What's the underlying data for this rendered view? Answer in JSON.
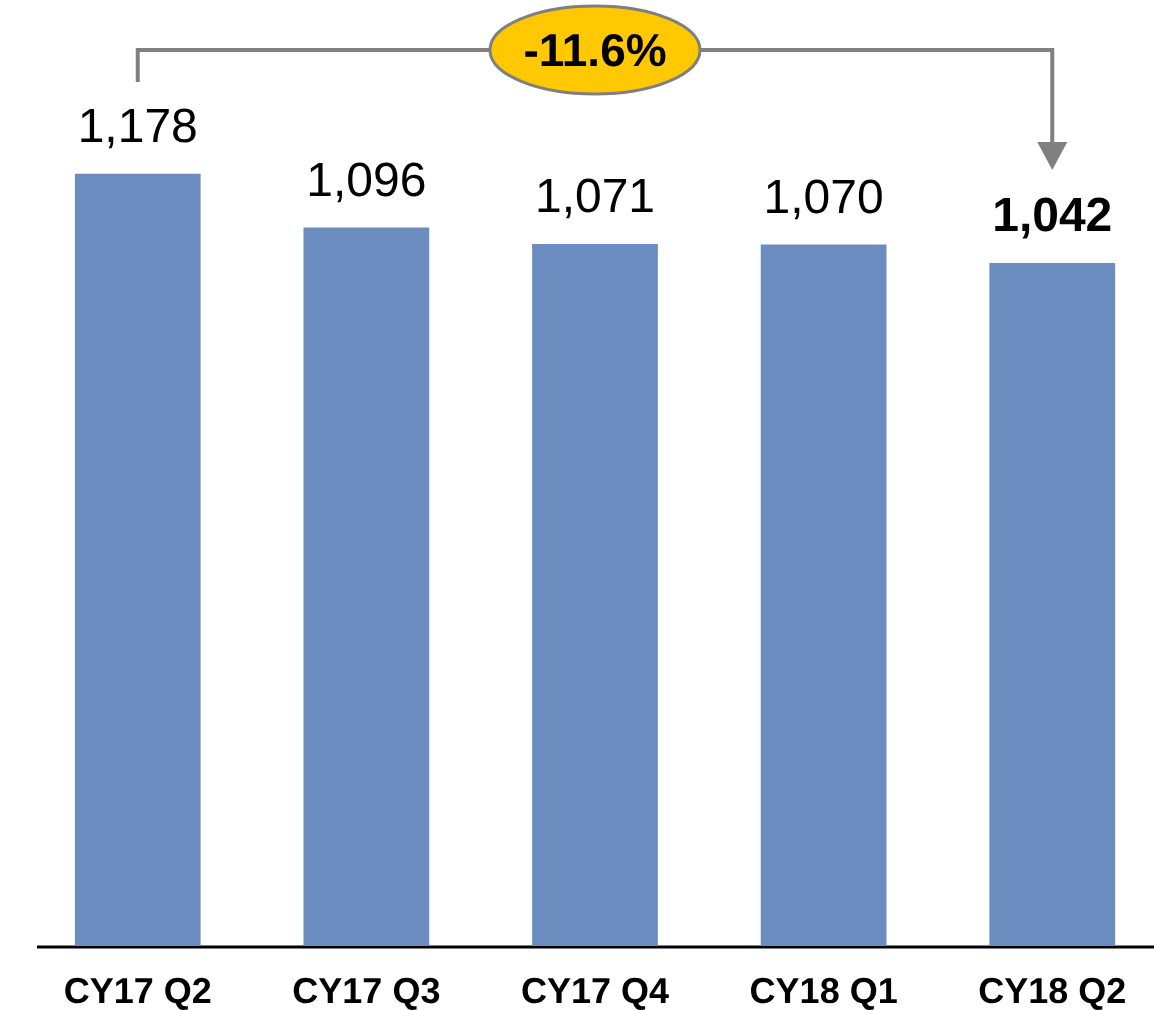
{
  "chart_data": {
    "type": "bar",
    "categories": [
      "CY17 Q2",
      "CY17 Q3",
      "CY17 Q4",
      "CY18 Q1",
      "CY18 Q2"
    ],
    "values": [
      1178,
      1096,
      1071,
      1070,
      1042
    ],
    "color": "#6b8cbe",
    "value_labels": [
      "1,178",
      "1,096",
      "1,071",
      "1,070",
      "1,042"
    ],
    "tick_labels": "x",
    "annotations": [
      "-11.6%"
    ]
  }
}
